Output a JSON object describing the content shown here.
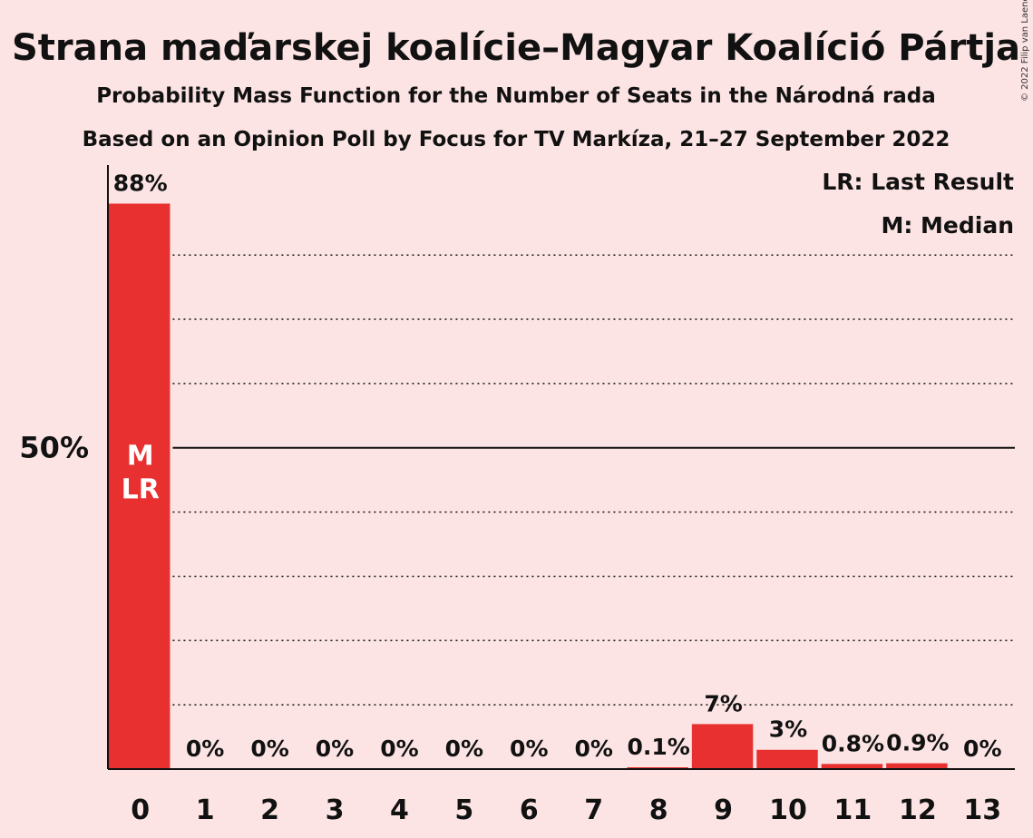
{
  "chart_data": {
    "type": "bar",
    "title": "Strana maďarskej koalície–Magyar Koalíció Pártja",
    "subtitle1": "Probability Mass Function for the Number of Seats in the Národná rada",
    "subtitle2": "Based on an Opinion Poll by Focus for TV Markíza, 21–27 September 2022",
    "categories": [
      "0",
      "1",
      "2",
      "3",
      "4",
      "5",
      "6",
      "7",
      "8",
      "9",
      "10",
      "11",
      "12",
      "13"
    ],
    "values": [
      88,
      0,
      0,
      0,
      0,
      0,
      0,
      0,
      0.1,
      7,
      3,
      0.8,
      0.9,
      0
    ],
    "data_labels": [
      "88%",
      "0%",
      "0%",
      "0%",
      "0%",
      "0%",
      "0%",
      "0%",
      "0.1%",
      "7%",
      "3%",
      "0.8%",
      "0.9%",
      "0%"
    ],
    "ylim": [
      0,
      94
    ],
    "y_tick_label": "50%",
    "y_tick_value": 50,
    "gridlines": [
      10,
      20,
      30,
      40,
      60,
      70,
      80
    ],
    "median_seat": "0",
    "last_result_seat": "0",
    "median_marker": "M",
    "last_result_marker": "LR",
    "legend": [
      "LR: Last Result",
      "M: Median"
    ],
    "bar_color": "#e83030",
    "copyright": "© 2022 Filip van Laenen"
  }
}
